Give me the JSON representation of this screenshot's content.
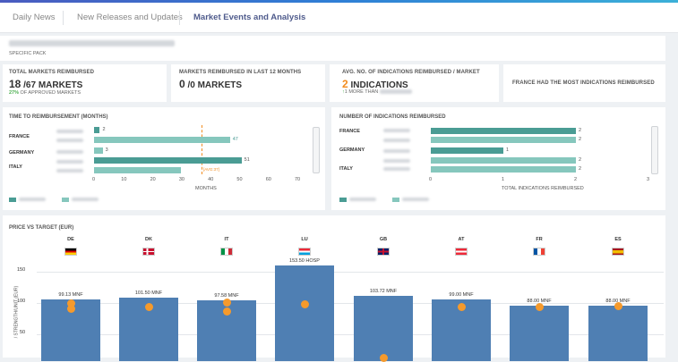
{
  "tabs": [
    "Daily News",
    "New Releases and Updates",
    "Market Events and Analysis"
  ],
  "header": {
    "subtitle": "SPECIFIC PACK"
  },
  "kpis": {
    "k1_title": "TOTAL MARKETS REIMBURSED",
    "k1_value": "18",
    "k1_rest": "/67 MARKETS",
    "k1_sub_pct": "27%",
    "k1_sub_text": "OF APPROVED MARKETS",
    "k2_title": "MARKETS REIMBURSED IN LAST 12 MONTHS",
    "k2_value": "0",
    "k2_rest": "/0 MARKETS",
    "k3_title": "AVG. NO. OF INDICATIONS REIMBURSED / MARKET",
    "k3_value": "2",
    "k3_rest": "INDICATIONS",
    "k3_sub_arrow": "↑",
    "k3_sub": "1 MORE THAN",
    "k4_title": "FRANCE HAD THE MOST INDICATIONS REIMBURSED"
  },
  "time_chart": {
    "title": "TIME TO REIMBURSEMENT (MONTHS)",
    "xlabel": "MONTHS",
    "ref_label": "[AVG:37]",
    "xticks": [
      "0",
      "10",
      "20",
      "30",
      "40",
      "50",
      "60",
      "70"
    ],
    "countries": [
      "FRANCE",
      "GERMANY",
      "ITALY"
    ]
  },
  "ind_chart": {
    "title": "NUMBER OF INDICATIONS REIMBURSED",
    "xlabel": "TOTAL INDICATIONS REIMBURSED",
    "xticks": [
      "0",
      "1",
      "2",
      "3"
    ],
    "countries": [
      "FRANCE",
      "GERMANY",
      "ITALY"
    ]
  },
  "price_chart": {
    "title": "PRICE VS TARGET (EUR)",
    "ylabel": "/ STRENGTH/UNIT (EUR)",
    "yticks": [
      "150",
      "100",
      "50"
    ],
    "countries": [
      "DE",
      "DK",
      "IT",
      "LU",
      "GB",
      "AT",
      "FR",
      "ES"
    ]
  },
  "chart_data": [
    {
      "type": "bar",
      "title": "TIME TO REIMBURSEMENT (MONTHS)",
      "xlabel": "MONTHS",
      "xlim": [
        0,
        70
      ],
      "reference_line": 37,
      "bars": [
        {
          "row": "FRANCE 1",
          "value": 2,
          "label": "2"
        },
        {
          "row": "FRANCE 2",
          "value": 47,
          "label": "47"
        },
        {
          "row": "GERMANY",
          "value": 3,
          "label": "3"
        },
        {
          "row": "ITALY 1",
          "value": 51,
          "label": "51"
        },
        {
          "row": "ITALY 2",
          "value": 30,
          "label": ""
        }
      ]
    },
    {
      "type": "bar",
      "title": "NUMBER OF INDICATIONS REIMBURSED",
      "xlabel": "TOTAL INDICATIONS REIMBURSED",
      "xlim": [
        0,
        3
      ],
      "bars": [
        {
          "row": "FRANCE 1",
          "value": 2,
          "label": "2"
        },
        {
          "row": "FRANCE 2",
          "value": 2,
          "label": "2"
        },
        {
          "row": "GERMANY",
          "value": 1,
          "label": "1"
        },
        {
          "row": "ITALY 1",
          "value": 2,
          "label": "2"
        },
        {
          "row": "ITALY 2",
          "value": 2,
          "label": "2"
        }
      ]
    },
    {
      "type": "bar",
      "title": "PRICE VS TARGET (EUR)",
      "ylabel": "/ STRENGTH/UNIT (EUR)",
      "ylim": [
        0,
        160
      ],
      "categories": [
        "DE",
        "DK",
        "IT",
        "LU",
        "GB",
        "AT",
        "FR",
        "ES"
      ],
      "values": [
        99.13,
        101.5,
        97.58,
        153.5,
        103.72,
        99.0,
        88.0,
        88.0
      ],
      "labels": [
        "99.13 MNF",
        "101.50 MNF",
        "97.58 MNF",
        "153.50 HOSP",
        "103.72 MNF",
        "99.00 MNF",
        "88.00 MNF",
        "88.00 MNF"
      ],
      "targets": [
        [
          92,
          83
        ],
        [
          87
        ],
        [
          94,
          79
        ],
        [
          91
        ],
        [
          5
        ],
        [
          87
        ],
        [
          87
        ],
        [
          88
        ]
      ]
    }
  ]
}
